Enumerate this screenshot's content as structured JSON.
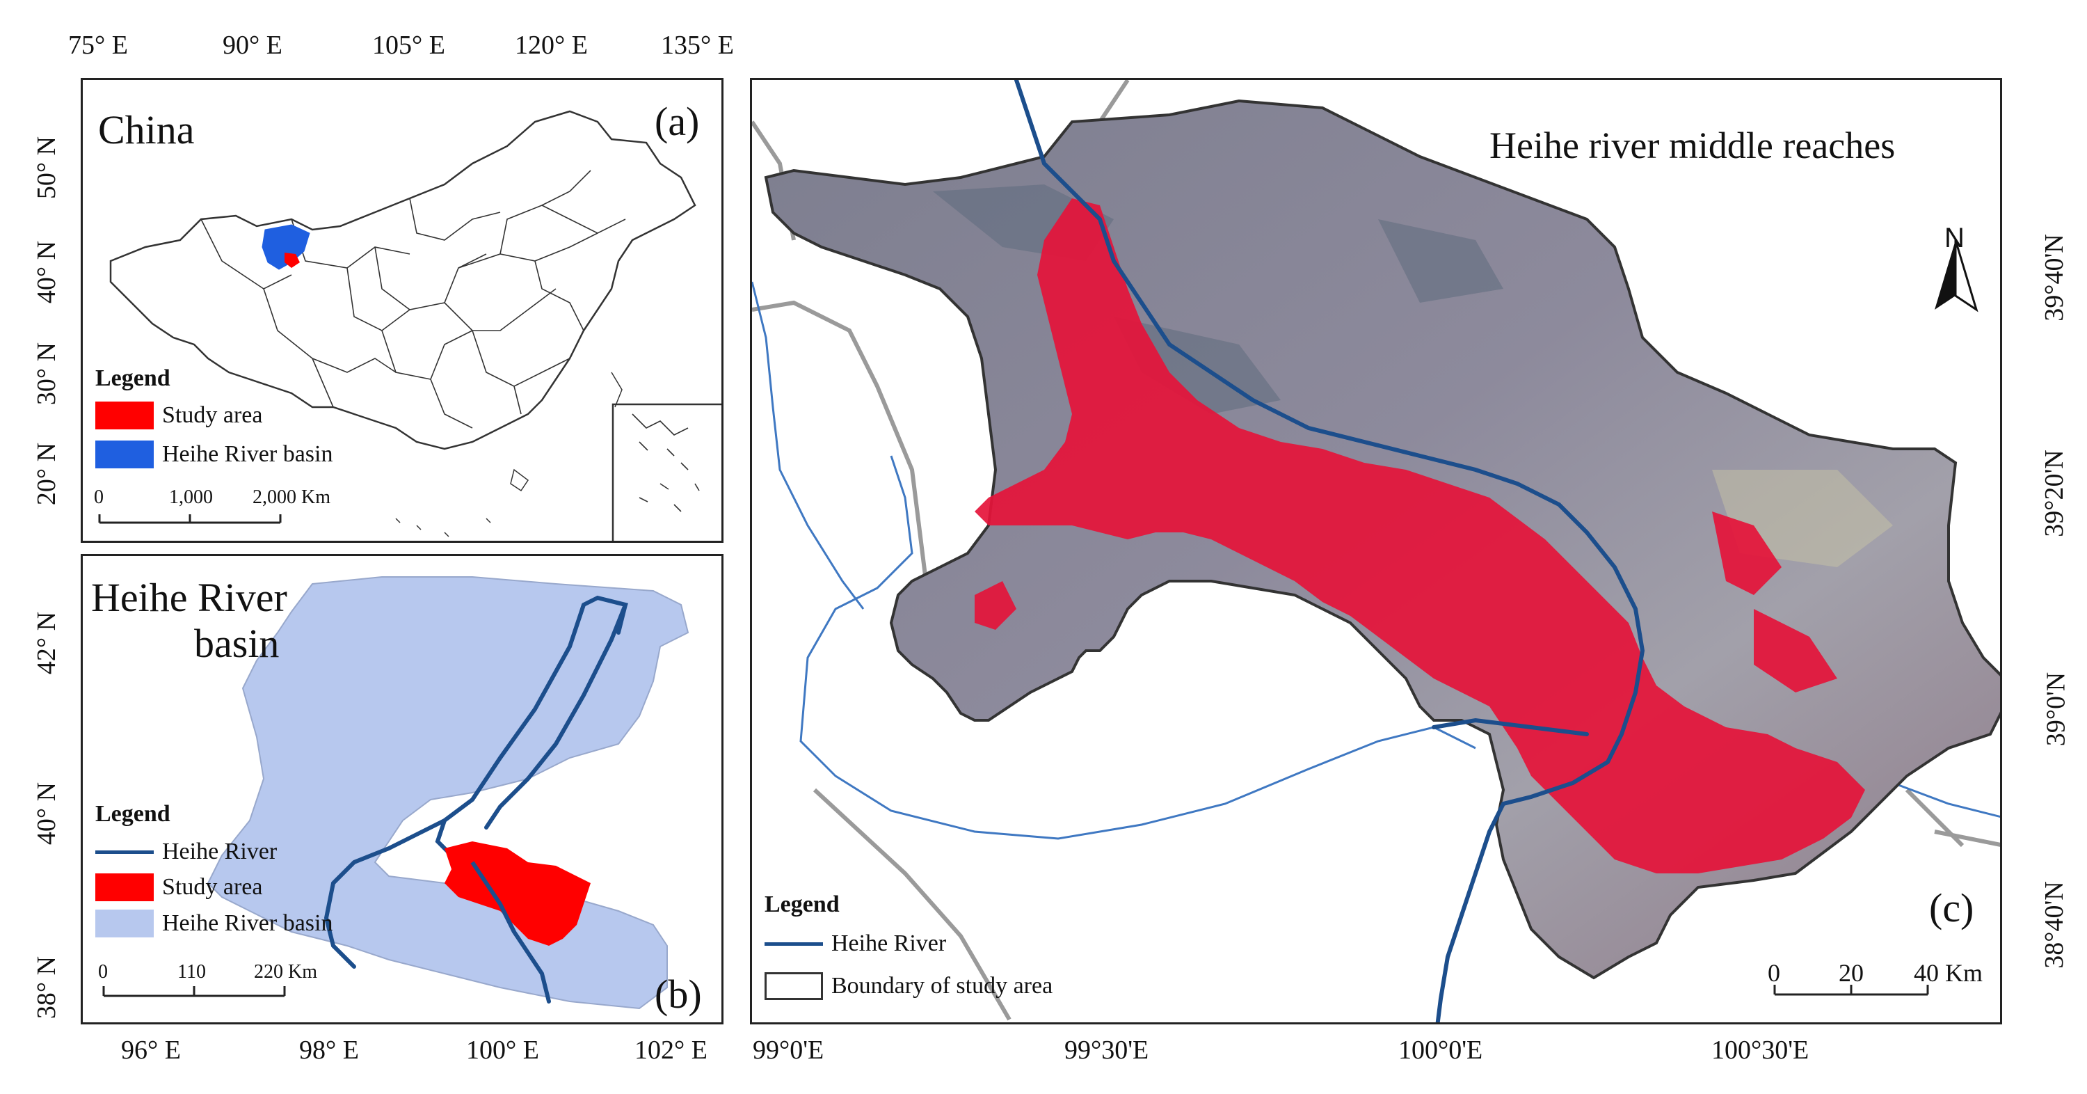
{
  "top_lon_ticks": [
    "75° E",
    "90° E",
    "105° E",
    "120° E",
    "135° E"
  ],
  "lat_ticks_a": [
    "50° N",
    "40° N",
    "30° N",
    "20° N"
  ],
  "lat_ticks_b": [
    "42° N",
    "40° N",
    "38° N"
  ],
  "bottom_lon_ticks_b": [
    "96° E",
    "98° E",
    "100° E",
    "102° E"
  ],
  "bottom_lon_ticks_c": [
    "99°0'E",
    "99°30'E",
    "100°0'E",
    "100°30'E"
  ],
  "right_lat_ticks_c": [
    "39°40'N",
    "39°20'N",
    "39°0'N",
    "38°40'N"
  ],
  "panel_a": {
    "title": "China",
    "label": "(a)",
    "legend_title": "Legend",
    "legend": [
      {
        "label": "Study area",
        "color": "#ff0000"
      },
      {
        "label": "Heihe River basin",
        "color": "#1f5fe0"
      }
    ],
    "scale_labels": [
      "0",
      "1,000",
      "2,000 Km"
    ]
  },
  "panel_b": {
    "title_line1": "Heihe River",
    "title_line2": "basin",
    "label": "(b)",
    "legend_title": "Legend",
    "legend": [
      {
        "label": "Heihe River",
        "color": "#1c4e8c"
      },
      {
        "label": "Study area",
        "color": "#ff0000"
      },
      {
        "label": "Heihe River basin",
        "color": "#b7c8ee"
      }
    ],
    "scale_labels": [
      "0",
      "110",
      "220 Km"
    ]
  },
  "panel_c": {
    "title": "Heihe river middle reaches",
    "label": "(c)",
    "north": "N",
    "legend_title": "Legend",
    "legend": [
      {
        "label": "Heihe River",
        "color": "#1c4e8c"
      },
      {
        "label": "Boundary of study area",
        "color": "#333333"
      }
    ],
    "scale_labels": [
      "0",
      "20",
      "40 Km"
    ]
  }
}
